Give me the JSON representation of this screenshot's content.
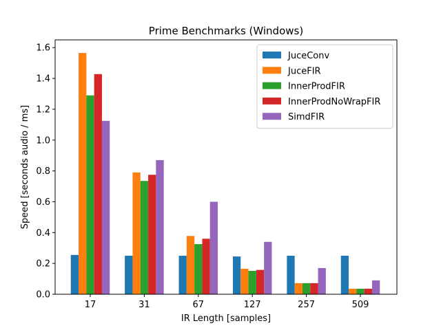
{
  "chart_data": {
    "type": "bar",
    "title": "Prime Benchmarks (Windows)",
    "xlabel": "IR Length [samples]",
    "ylabel": "Speed [seconds audio / ms]",
    "categories": [
      "17",
      "31",
      "67",
      "127",
      "257",
      "509"
    ],
    "ylim": [
      0,
      1.65
    ],
    "yticks": [
      "0.0",
      "0.2",
      "0.4",
      "0.6",
      "0.8",
      "1.0",
      "1.2",
      "1.4",
      "1.6"
    ],
    "grid": false,
    "legend_position": "top-right",
    "series": [
      {
        "name": "JuceConv",
        "color": "#1f77b4",
        "values": [
          0.255,
          0.25,
          0.25,
          0.245,
          0.25,
          0.25
        ]
      },
      {
        "name": "JuceFIR",
        "color": "#ff7f0e",
        "values": [
          1.565,
          0.79,
          0.378,
          0.165,
          0.072,
          0.036
        ]
      },
      {
        "name": "InnerProdFIR",
        "color": "#2ca02c",
        "values": [
          1.29,
          0.735,
          0.325,
          0.152,
          0.072,
          0.036
        ]
      },
      {
        "name": "InnerProdNoWrapFIR",
        "color": "#d62728",
        "values": [
          1.428,
          0.775,
          0.36,
          0.158,
          0.072,
          0.036
        ]
      },
      {
        "name": "SimdFIR",
        "color": "#9467bd",
        "values": [
          1.125,
          0.87,
          0.6,
          0.34,
          0.17,
          0.09
        ]
      }
    ]
  }
}
